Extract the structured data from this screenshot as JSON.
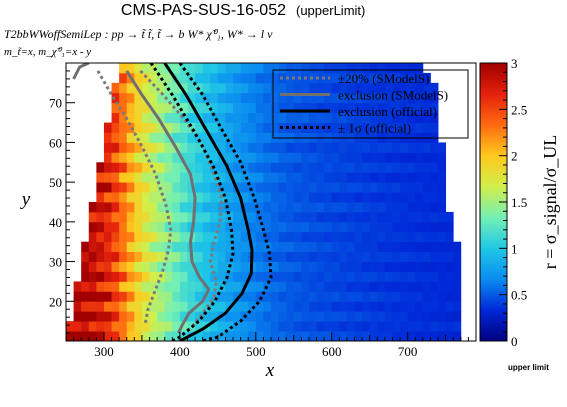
{
  "chart_data": {
    "type": "heatmap",
    "title": "CMS-PAS-SUS-16-052",
    "title_suffix": "(upperLimit)",
    "process": "T2bbWWoffSemiLep : pp → t̃ t̃, t̃ → b W* χ̃⁰₁, W* → l ν",
    "mass_text": "m_t̃=x, m_χ̃⁰₁=x - y",
    "corner_note": "upper limit",
    "xlabel": "x",
    "ylabel": "y",
    "zlabel": "r = σ_signal/σ_UL",
    "xlim": [
      250,
      790
    ],
    "ylim": [
      10,
      80
    ],
    "zlim": [
      0,
      3
    ],
    "x_ticks": [
      300,
      400,
      500,
      600,
      700
    ],
    "y_ticks": [
      20,
      30,
      40,
      50,
      60,
      70
    ],
    "z_ticks": [
      0,
      0.5,
      1,
      1.5,
      2,
      2.5,
      3
    ],
    "grid": false,
    "legend_position": "top-right",
    "colormap": [
      "#00007f",
      "#0028d8",
      "#0a8cf0",
      "#20c8e6",
      "#74f0b4",
      "#d2ee4a",
      "#ffc81e",
      "#ff6a10",
      "#e4200c",
      "#a00000"
    ],
    "grid_bins": {
      "x_start": 250,
      "x_step": 10,
      "y_start": 10,
      "y_step": 2.5
    },
    "cell_model": {
      "description": "r estimated from the colour map",
      "edge_x_values": [
        250,
        280,
        310,
        330,
        350,
        370,
        390,
        410,
        430,
        450,
        470,
        490,
        510,
        540,
        580,
        640,
        700,
        760,
        790
      ],
      "r_values": [
        3.0,
        2.9,
        2.6,
        2.2,
        1.8,
        1.55,
        1.35,
        1.15,
        1.0,
        0.88,
        0.75,
        0.66,
        0.58,
        0.5,
        0.45,
        0.4,
        0.36,
        0.33,
        0.32
      ],
      "cutoff_x_by_y": [
        [
          10,
          770
        ],
        [
          34,
          770
        ],
        [
          36,
          760
        ],
        [
          43,
          750
        ],
        [
          60,
          740
        ],
        [
          70,
          740
        ],
        [
          78,
          720
        ]
      ]
    },
    "series": [
      {
        "name": "±20% (SModelS)",
        "style": "dotted",
        "color": "#7a7a7a",
        "lines": [
          [
            [
              292,
              78
            ],
            [
              310,
              72
            ],
            [
              330,
              66
            ],
            [
              350,
              59
            ],
            [
              368,
              52
            ],
            [
              382,
              44
            ],
            [
              388,
              38
            ],
            [
              385,
              33
            ],
            [
              378,
              28
            ],
            [
              368,
              23
            ],
            [
              358,
              18
            ],
            [
              354,
              14
            ]
          ],
          [
            [
              348,
              78
            ],
            [
              378,
              72
            ],
            [
              405,
              66
            ],
            [
              428,
              60
            ],
            [
              445,
              52
            ],
            [
              455,
              46
            ],
            [
              453,
              40
            ],
            [
              445,
              35
            ],
            [
              440,
              30
            ],
            [
              448,
              25
            ],
            [
              445,
              21
            ],
            [
              430,
              17
            ],
            [
              414,
              13
            ]
          ]
        ]
      },
      {
        "name": "exclusion (SModelS)",
        "style": "solid",
        "color": "#707070",
        "lines": [
          [
            [
              260,
              76
            ],
            [
              268,
              79
            ],
            [
              280,
              80
            ]
          ],
          [
            [
              330,
              78
            ],
            [
              350,
              72
            ],
            [
              372,
              66
            ],
            [
              394,
              59
            ],
            [
              414,
              52
            ],
            [
              420,
              46
            ],
            [
              418,
              40
            ],
            [
              414,
              35
            ],
            [
              416,
              30
            ],
            [
              426,
              26
            ],
            [
              438,
              23
            ],
            [
              430,
              20
            ],
            [
              412,
              17
            ],
            [
              403,
              14
            ],
            [
              398,
              12
            ]
          ]
        ]
      },
      {
        "name": "exclusion (official)",
        "style": "solid",
        "color": "#000000",
        "lines": [
          [
            [
              380,
              80
            ],
            [
              408,
              72
            ],
            [
              435,
              63
            ],
            [
              462,
              54
            ],
            [
              480,
              46
            ],
            [
              490,
              38
            ],
            [
              495,
              33
            ],
            [
              494,
              27
            ],
            [
              482,
              22
            ],
            [
              460,
              17
            ],
            [
              430,
              13
            ],
            [
              400,
              10
            ]
          ]
        ]
      },
      {
        "name": "± 1σ (official)",
        "style": "dotted",
        "color": "#000000",
        "lines": [
          [
            [
              362,
              80
            ],
            [
              390,
              72
            ],
            [
              418,
              63
            ],
            [
              444,
              54
            ],
            [
              460,
              46
            ],
            [
              468,
              38
            ],
            [
              470,
              32
            ],
            [
              462,
              26
            ],
            [
              446,
              20
            ],
            [
              425,
              15
            ],
            [
              400,
              11
            ],
            [
              390,
              10
            ]
          ],
          [
            [
              400,
              80
            ],
            [
              430,
              72
            ],
            [
              456,
              63
            ],
            [
              480,
              55
            ],
            [
              498,
              46
            ],
            [
              510,
              38
            ],
            [
              518,
              32
            ],
            [
              520,
              26
            ],
            [
              505,
              20
            ],
            [
              480,
              15
            ],
            [
              450,
              11
            ],
            [
              430,
              10
            ]
          ]
        ]
      }
    ]
  }
}
